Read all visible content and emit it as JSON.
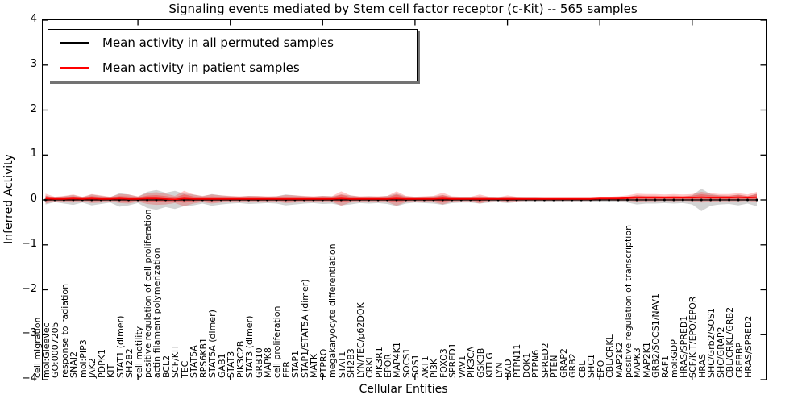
{
  "chart_data": {
    "type": "line",
    "title": "Signaling events mediated by Stem cell factor receptor (c-Kit) -- 565 samples",
    "xlabel": "Cellular Entities",
    "ylabel": "Inferred Activity",
    "ylim": [
      -4,
      4
    ],
    "yticks": [
      4,
      3,
      2,
      1,
      0,
      -1,
      -2,
      -3,
      -4
    ],
    "ytick_labels": [
      "4",
      "3",
      "2",
      "1",
      "0",
      "−1",
      "−2",
      "−3",
      "−4"
    ],
    "xtick_every": 10,
    "legend_position": "upper left",
    "grid": false,
    "categories": [
      "cell migration",
      "mol:Gleevec",
      "GO:0007205",
      "response to radiation",
      "SNAI2",
      "mol:PIP3",
      "JAK2",
      "PDPK1",
      "KIT",
      "STAT1 (dimer)",
      "SH2B2",
      "cell motility",
      "positive regulation of cell proliferation",
      "actin filament polymerization",
      "BCL2",
      "SCF/KIT",
      "TEC",
      "STAT5A",
      "RPS6KB1",
      "STAT5A (dimer)",
      "GAB1",
      "STAT3",
      "PIK3C2B",
      "STAT3 (dimer)",
      "GRB10",
      "MAPK8",
      "cell proliferation",
      "FER",
      "STAP1",
      "STAP1/STAT5A (dimer)",
      "MATK",
      "PTPRO",
      "megakaryocyte differentiation",
      "STAT1",
      "SH2B3",
      "LYN/TEC/p62DOK",
      "CRKL",
      "PIK3R1",
      "EPOR",
      "MAP4K1",
      "SOCS1",
      "SOS1",
      "AKT1",
      "PI3K",
      "FOXO3",
      "SPRED1",
      "VAV1",
      "PIK3CA",
      "GSK3B",
      "KITLG",
      "LYN",
      "BAD",
      "PTPN11",
      "DOK1",
      "PTPN6",
      "SPRED2",
      "PTEN",
      "GRAP2",
      "GRB2",
      "CBL",
      "SHC1",
      "EPO",
      "CBL/CRKL",
      "MAP2K2",
      "positive regulation of transcription",
      "MAPK3",
      "MAP2K1",
      "GRB2/SOCS1/NAV1",
      "RAF1",
      "mol:GDP",
      "HRAS/SPRED1",
      "SCF/KIT/EPO/EPOR",
      "HRAS",
      "SHC/Grb2/SOS1",
      "SHC/GRAP2",
      "CBL/CRKL/GRB2",
      "CREBBP",
      "HRAS/SPRED2"
    ],
    "series": [
      {
        "name": "Mean activity in all permuted samples",
        "color": "#000000",
        "band_color": "#808080",
        "band_alpha": 0.35,
        "mean": [
          0,
          0,
          0,
          0,
          0,
          0,
          0,
          0,
          0,
          0,
          0,
          0,
          0,
          0,
          0,
          0,
          0,
          0,
          0,
          0,
          0,
          0,
          0,
          0,
          0,
          0,
          0,
          0,
          0,
          0,
          0,
          0,
          0,
          0,
          0,
          0,
          0,
          0,
          0,
          0,
          0,
          0,
          0,
          0,
          0,
          0,
          0,
          0,
          0,
          0,
          0,
          0,
          0,
          0,
          0,
          0,
          0,
          0,
          0,
          0,
          0,
          0,
          0,
          0,
          0,
          0,
          0,
          0,
          0,
          0,
          0,
          0,
          0,
          0,
          0,
          0,
          0,
          0
        ],
        "band_halfwidth": [
          0.1,
          0.05,
          0.08,
          0.11,
          0.06,
          0.12,
          0.09,
          0.06,
          0.15,
          0.12,
          0.07,
          0.18,
          0.22,
          0.16,
          0.2,
          0.14,
          0.12,
          0.08,
          0.13,
          0.1,
          0.08,
          0.07,
          0.09,
          0.08,
          0.07,
          0.08,
          0.12,
          0.1,
          0.08,
          0.07,
          0.09,
          0.08,
          0.12,
          0.1,
          0.07,
          0.08,
          0.07,
          0.09,
          0.14,
          0.08,
          0.06,
          0.07,
          0.08,
          0.11,
          0.07,
          0.06,
          0.06,
          0.08,
          0.06,
          0.05,
          0.07,
          0.05,
          0.05,
          0.05,
          0.04,
          0.04,
          0.04,
          0.04,
          0.04,
          0.04,
          0.04,
          0.04,
          0.05,
          0.06,
          0.1,
          0.08,
          0.08,
          0.07,
          0.08,
          0.07,
          0.1,
          0.25,
          0.13,
          0.1,
          0.09,
          0.12,
          0.08,
          0.14
        ]
      },
      {
        "name": "Mean activity in patient samples",
        "color": "#ff0000",
        "band_color": "#ff0000",
        "band_alpha": 0.22,
        "mean": [
          0.03,
          0.02,
          0.02,
          0.03,
          0.02,
          0.03,
          0.02,
          0.02,
          0.03,
          0.02,
          0.02,
          0.03,
          0.03,
          0.02,
          0.01,
          0.03,
          0.02,
          0.02,
          0.02,
          0.02,
          0.02,
          0.02,
          0.02,
          0.02,
          0.02,
          0.02,
          0.02,
          0.02,
          0.02,
          0.02,
          0.02,
          0.02,
          0.03,
          0.02,
          0.02,
          0.02,
          0.02,
          0.02,
          0.03,
          0.02,
          0.02,
          0.02,
          0.02,
          0.03,
          0.02,
          0.02,
          0.02,
          0.02,
          0.02,
          0.02,
          0.02,
          0.02,
          0.02,
          0.02,
          0.02,
          0.02,
          0.02,
          0.02,
          0.02,
          0.02,
          0.03,
          0.03,
          0.03,
          0.04,
          0.05,
          0.05,
          0.05,
          0.05,
          0.05,
          0.05,
          0.05,
          0.06,
          0.05,
          0.05,
          0.05,
          0.06,
          0.05,
          0.06
        ],
        "band_halfwidth": [
          0.11,
          0.05,
          0.07,
          0.09,
          0.05,
          0.1,
          0.08,
          0.05,
          0.1,
          0.1,
          0.06,
          0.12,
          0.14,
          0.12,
          0.08,
          0.17,
          0.1,
          0.07,
          0.1,
          0.08,
          0.07,
          0.06,
          0.07,
          0.07,
          0.06,
          0.06,
          0.09,
          0.08,
          0.07,
          0.06,
          0.07,
          0.06,
          0.16,
          0.08,
          0.06,
          0.06,
          0.06,
          0.07,
          0.16,
          0.07,
          0.05,
          0.06,
          0.07,
          0.13,
          0.06,
          0.05,
          0.05,
          0.1,
          0.05,
          0.04,
          0.08,
          0.05,
          0.04,
          0.04,
          0.04,
          0.04,
          0.04,
          0.04,
          0.04,
          0.04,
          0.04,
          0.04,
          0.05,
          0.06,
          0.09,
          0.08,
          0.08,
          0.07,
          0.08,
          0.07,
          0.08,
          0.12,
          0.1,
          0.08,
          0.08,
          0.09,
          0.07,
          0.12
        ]
      }
    ]
  },
  "legend": {
    "items": [
      {
        "label": "Mean activity in all permuted samples",
        "color": "#000000"
      },
      {
        "label": "Mean activity in patient samples",
        "color": "#ff0000"
      }
    ]
  }
}
